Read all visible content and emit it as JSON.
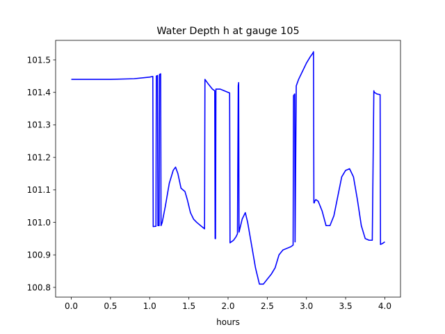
{
  "chart_data": {
    "type": "line",
    "title": "Water Depth h at gauge 105",
    "xlabel": "hours",
    "ylabel": "",
    "xlim": [
      -0.2,
      4.2
    ],
    "ylim": [
      100.77,
      101.56
    ],
    "xticks": [
      0.0,
      0.5,
      1.0,
      1.5,
      2.0,
      2.5,
      3.0,
      3.5,
      4.0
    ],
    "xtick_labels": [
      "0.0",
      "0.5",
      "1.0",
      "1.5",
      "2.0",
      "2.5",
      "3.0",
      "3.5",
      "4.0"
    ],
    "yticks": [
      100.8,
      100.9,
      101.0,
      101.1,
      101.2,
      101.3,
      101.4,
      101.5
    ],
    "ytick_labels": [
      "100.8",
      "100.9",
      "101.0",
      "101.1",
      "101.2",
      "101.3",
      "101.4",
      "101.5"
    ],
    "grid": false,
    "series": [
      {
        "color": "#0000ff",
        "x": [
          0.0,
          0.5,
          0.8,
          1.0,
          1.04,
          1.045,
          1.08,
          1.085,
          1.1,
          1.105,
          1.12,
          1.125,
          1.14,
          1.145,
          1.16,
          1.2,
          1.25,
          1.3,
          1.33,
          1.36,
          1.4,
          1.45,
          1.48,
          1.52,
          1.56,
          1.6,
          1.65,
          1.7,
          1.705,
          1.75,
          1.8,
          1.83,
          1.835,
          1.84,
          1.845,
          1.9,
          1.95,
          2.0,
          2.02,
          2.025,
          2.07,
          2.1,
          2.12,
          2.13,
          2.135,
          2.14,
          2.145,
          2.18,
          2.22,
          2.25,
          2.3,
          2.35,
          2.4,
          2.45,
          2.5,
          2.55,
          2.6,
          2.65,
          2.7,
          2.75,
          2.8,
          2.83,
          2.835,
          2.85,
          2.855,
          2.87,
          2.9,
          2.95,
          3.0,
          3.05,
          3.08,
          3.09,
          3.095,
          3.1,
          3.105,
          3.12,
          3.15,
          3.2,
          3.25,
          3.3,
          3.35,
          3.4,
          3.45,
          3.5,
          3.55,
          3.6,
          3.65,
          3.7,
          3.75,
          3.8,
          3.84,
          3.86,
          3.865,
          3.9,
          3.94,
          3.945,
          3.97,
          4.0
        ],
        "y": [
          101.44,
          101.44,
          101.442,
          101.447,
          101.449,
          100.987,
          100.988,
          101.45,
          101.452,
          100.99,
          100.99,
          101.455,
          101.457,
          100.99,
          101.0,
          101.05,
          101.12,
          101.16,
          101.17,
          101.15,
          101.105,
          101.095,
          101.07,
          101.03,
          101.01,
          101.0,
          100.99,
          100.98,
          101.44,
          101.425,
          101.41,
          101.405,
          100.95,
          100.95,
          101.41,
          101.41,
          101.405,
          101.4,
          101.398,
          100.937,
          100.945,
          100.955,
          100.965,
          101.42,
          101.43,
          100.97,
          100.975,
          101.01,
          101.03,
          101.0,
          100.93,
          100.86,
          100.81,
          100.81,
          100.825,
          100.84,
          100.86,
          100.9,
          100.915,
          100.92,
          100.925,
          100.93,
          101.39,
          101.395,
          100.94,
          101.42,
          101.44,
          101.465,
          101.49,
          101.51,
          101.52,
          101.525,
          101.06,
          101.06,
          101.065,
          101.07,
          101.065,
          101.035,
          100.99,
          100.99,
          101.02,
          101.08,
          101.14,
          101.16,
          101.165,
          101.14,
          101.07,
          100.99,
          100.95,
          100.945,
          100.945,
          101.405,
          101.4,
          101.395,
          101.393,
          100.932,
          100.935,
          100.94
        ]
      }
    ]
  }
}
